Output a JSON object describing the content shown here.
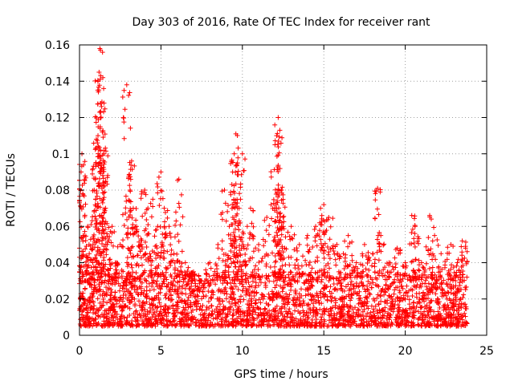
{
  "chart_data": {
    "type": "scatter",
    "title": "Day 303 of 2016, Rate Of TEC Index for receiver rant",
    "xlabel": "GPS time / hours",
    "ylabel": "ROTI / TECUs",
    "xlim": [
      0,
      25
    ],
    "ylim": [
      0,
      0.16
    ],
    "xticks": [
      0,
      5,
      10,
      15,
      20,
      25
    ],
    "xtick_labels": [
      "0",
      "5",
      "10",
      "15",
      "20",
      "25"
    ],
    "yticks": [
      0,
      0.02,
      0.04,
      0.06,
      0.08,
      0.1,
      0.12,
      0.14,
      0.16
    ],
    "ytick_labels": [
      "0",
      "0.02",
      "0.04",
      "0.06",
      "0.08",
      "0.1",
      "0.12",
      "0.14",
      "0.16"
    ],
    "grid": true,
    "marker": "+",
    "color": "#ff0000",
    "series": [
      {
        "name": "ROTI",
        "x": [
          0.05,
          0.1,
          0.15,
          0.2,
          0.3,
          0.35,
          0.5,
          0.6,
          0.9,
          1.0,
          1.1,
          1.2,
          1.25,
          1.3,
          1.35,
          1.4,
          1.5,
          1.6,
          1.7,
          2.0,
          2.2,
          2.5,
          2.9,
          3.1,
          3.2,
          3.3,
          3.5,
          3.8,
          4.0,
          4.2,
          4.5,
          4.8,
          5.0,
          5.2,
          5.5,
          5.8,
          6.1,
          6.5,
          7.0,
          7.5,
          8.0,
          8.5,
          8.9,
          9.2,
          9.4,
          9.5,
          9.6,
          9.7,
          9.8,
          10.0,
          10.3,
          10.5,
          11.0,
          11.5,
          12.0,
          12.1,
          12.2,
          12.3,
          12.4,
          12.5,
          13.0,
          13.5,
          14.0,
          14.5,
          14.8,
          15.0,
          15.3,
          15.8,
          16.2,
          16.5,
          17.0,
          17.5,
          18.0,
          18.3,
          18.5,
          19.0,
          19.5,
          20.0,
          20.4,
          20.6,
          21.0,
          21.5,
          21.8,
          22.2,
          22.8,
          23.2,
          23.5,
          23.7
        ],
        "y": [
          0.02,
          0.09,
          0.1,
          0.078,
          0.055,
          0.03,
          0.06,
          0.045,
          0.08,
          0.095,
          0.106,
          0.145,
          0.158,
          0.143,
          0.126,
          0.112,
          0.1,
          0.07,
          0.05,
          0.06,
          0.04,
          0.05,
          0.138,
          0.08,
          0.096,
          0.07,
          0.06,
          0.05,
          0.08,
          0.07,
          0.075,
          0.06,
          0.09,
          0.07,
          0.06,
          0.045,
          0.086,
          0.04,
          0.035,
          0.03,
          0.04,
          0.05,
          0.08,
          0.06,
          0.09,
          0.1,
          0.111,
          0.095,
          0.07,
          0.1,
          0.06,
          0.07,
          0.05,
          0.065,
          0.105,
          0.11,
          0.12,
          0.113,
          0.08,
          0.06,
          0.06,
          0.05,
          0.055,
          0.06,
          0.07,
          0.072,
          0.065,
          0.05,
          0.045,
          0.055,
          0.04,
          0.05,
          0.045,
          0.081,
          0.055,
          0.04,
          0.048,
          0.04,
          0.066,
          0.06,
          0.04,
          0.066,
          0.055,
          0.045,
          0.05,
          0.04,
          0.052,
          0.048
        ],
        "dense_band": {
          "description_values": "background cloud of points",
          "x_range": [
            0,
            23.8
          ],
          "y_low": 0.005,
          "y_high": 0.035
        }
      }
    ]
  }
}
